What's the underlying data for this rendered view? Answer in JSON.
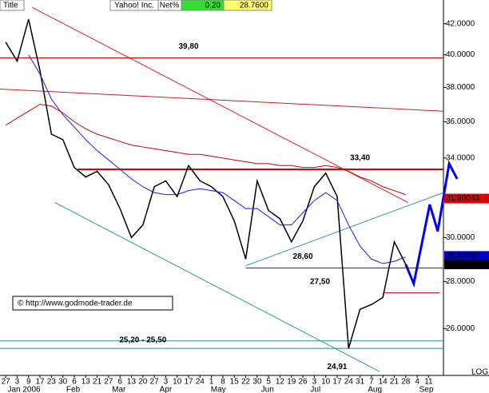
{
  "chart_data": {
    "type": "line",
    "header": {
      "title": "Title",
      "symbol": "Yahoo! Inc.",
      "net_label": "Net%",
      "net_value": "0.20",
      "last": "28.7600"
    },
    "watermark": "© http://www.godmode-trader.de",
    "scale_label": "LOG",
    "log_scale": true,
    "x": [
      0,
      1,
      2,
      3,
      4,
      5,
      6,
      7,
      8,
      9,
      10,
      11,
      12,
      13,
      14,
      15,
      16,
      17,
      18,
      19,
      20,
      21,
      22,
      23,
      24,
      25,
      26,
      27,
      28,
      29,
      30,
      31,
      32,
      33,
      34,
      35
    ],
    "series": [
      {
        "name": "Price",
        "color": "#000000",
        "values": [
          40.8,
          39.6,
          42.3,
          39.0,
          35.3,
          35.0,
          33.5,
          33.0,
          33.3,
          32.6,
          31.4,
          30.0,
          30.6,
          32.5,
          32.8,
          32.0,
          33.6,
          32.8,
          32.5,
          32.0,
          30.8,
          29.0,
          32.8,
          31.3,
          30.9,
          29.8,
          30.8,
          32.5,
          33.2,
          32.0,
          25.2,
          26.8,
          27.0,
          27.3,
          29.8,
          28.76
        ]
      },
      {
        "name": "MA blue",
        "color": "#1a1aff",
        "values": [
          null,
          null,
          40.0,
          38.8,
          37.3,
          36.4,
          35.7,
          35.0,
          34.4,
          33.9,
          33.4,
          32.9,
          32.5,
          32.2,
          32.1,
          32.1,
          32.3,
          32.4,
          32.3,
          32.2,
          31.8,
          31.4,
          31.4,
          31.0,
          30.6,
          30.6,
          31.2,
          31.8,
          32.2,
          31.8,
          30.6,
          29.6,
          29.0,
          28.8,
          28.9,
          29.1
        ]
      },
      {
        "name": "MA red",
        "color": "#cc0000",
        "values": [
          35.8,
          36.2,
          36.6,
          37.0,
          36.9,
          36.5,
          36.0,
          35.6,
          35.3,
          35.1,
          34.9,
          34.7,
          34.6,
          34.5,
          34.4,
          34.3,
          34.2,
          34.2,
          34.1,
          34.0,
          33.9,
          33.8,
          33.7,
          33.7,
          33.6,
          33.6,
          33.5,
          33.5,
          33.6,
          33.5,
          33.3,
          33.0,
          32.8,
          32.5,
          32.3,
          32.1
        ]
      }
    ],
    "forecast": {
      "color": "#0000ff",
      "x": [
        35,
        35.7,
        37.1,
        37.8,
        38.8,
        39.5
      ],
      "values": [
        28.76,
        27.9,
        31.6,
        30.3,
        33.7,
        32.9
      ]
    },
    "levels": [
      {
        "value": 39.8,
        "label": "39,80",
        "from": -0.5,
        "to": 38.3,
        "color": "#cc0000",
        "label_x": 16
      },
      {
        "value": 33.4,
        "label": "33,40",
        "from": 6.3,
        "to": 38.3,
        "color": "#dd0000",
        "label_x": 31
      },
      {
        "value": 28.6,
        "label": "28,60",
        "from": 21,
        "to": 38.3,
        "color": "#aa0000",
        "label_x": 26
      },
      {
        "value": 27.5,
        "label": "27,50",
        "from": 33,
        "to": 38,
        "color": "#cc0000",
        "label_x": 27.5
      }
    ],
    "band": {
      "values": [
        25.2,
        25.5
      ],
      "label": "25,20 - 25,50",
      "color": "#2a8a8a",
      "label_x": 12
    },
    "low": {
      "value": 24.91,
      "label": "24,91",
      "x": 29
    },
    "trendlines": [
      {
        "color": "#dd2222",
        "x": [
          2.3,
          35.2
        ],
        "values": [
          43.1,
          31.7
        ]
      },
      {
        "color": "#cc2222",
        "x": [
          -0.5,
          38.3
        ],
        "values": [
          37.9,
          36.6
        ]
      },
      {
        "color": "#2a9a9a",
        "x": [
          21,
          38.3
        ],
        "values": [
          28.7,
          32.2
        ]
      },
      {
        "color": "#2a9a9a",
        "x": [
          4.3,
          32.7
        ],
        "values": [
          31.7,
          24.3
        ]
      }
    ],
    "price_tags": [
      {
        "value": 31.90048,
        "label": "31.90048",
        "bg": "#dd0000",
        "fg": "#ffffff"
      },
      {
        "value": 29.14687,
        "label": "29.14687",
        "bg": "#0000cc",
        "fg": "#ffffff"
      },
      {
        "value": 28.76,
        "label": "28.7600",
        "bg": "#000000",
        "fg": "#ffffff"
      }
    ],
    "xlim": [
      -0.5,
      38.3
    ],
    "ylim": [
      24.15,
      43.6
    ],
    "yticks": [
      {
        "value": 42,
        "label": "42.0000"
      },
      {
        "value": 40,
        "label": "40.0000"
      },
      {
        "value": 38,
        "label": "38.0000"
      },
      {
        "value": 36,
        "label": "36.0000"
      },
      {
        "value": 34,
        "label": "34.0000"
      },
      {
        "value": 30,
        "label": "30.0000"
      },
      {
        "value": 28,
        "label": "28.0000"
      },
      {
        "value": 26,
        "label": "26.0000"
      }
    ],
    "xticks": [
      {
        "value": 0,
        "label": "27"
      },
      {
        "value": 1,
        "label": "3"
      },
      {
        "value": 2,
        "label": "9"
      },
      {
        "value": 3,
        "label": "17"
      },
      {
        "value": 4,
        "label": "23"
      },
      {
        "value": 5,
        "label": "30"
      },
      {
        "value": 6,
        "label": "6"
      },
      {
        "value": 7,
        "label": "13"
      },
      {
        "value": 8,
        "label": "21"
      },
      {
        "value": 9,
        "label": "27"
      },
      {
        "value": 10,
        "label": "6"
      },
      {
        "value": 11,
        "label": "13"
      },
      {
        "value": 12,
        "label": "20"
      },
      {
        "value": 13,
        "label": "27"
      },
      {
        "value": 14,
        "label": "3"
      },
      {
        "value": 15,
        "label": "10"
      },
      {
        "value": 16,
        "label": "17"
      },
      {
        "value": 17,
        "label": "24"
      },
      {
        "value": 18,
        "label": "1"
      },
      {
        "value": 19,
        "label": "8"
      },
      {
        "value": 20,
        "label": "15"
      },
      {
        "value": 21,
        "label": "22"
      },
      {
        "value": 22,
        "label": "30"
      },
      {
        "value": 23,
        "label": "5"
      },
      {
        "value": 24,
        "label": "12"
      },
      {
        "value": 25,
        "label": "19"
      },
      {
        "value": 26,
        "label": "26"
      },
      {
        "value": 27,
        "label": "3"
      },
      {
        "value": 28,
        "label": "10"
      },
      {
        "value": 29,
        "label": "17"
      },
      {
        "value": 30,
        "label": "24"
      },
      {
        "value": 31,
        "label": "31"
      },
      {
        "value": 32,
        "label": "7"
      },
      {
        "value": 33,
        "label": "14"
      },
      {
        "value": 34,
        "label": "21"
      },
      {
        "value": 35,
        "label": "28"
      },
      {
        "value": 36,
        "label": "4"
      },
      {
        "value": 37,
        "label": "11"
      }
    ],
    "months": [
      {
        "value": 1.6,
        "label": "Jan 2006"
      },
      {
        "value": 5.9,
        "label": "Feb"
      },
      {
        "value": 9.9,
        "label": "Mar"
      },
      {
        "value": 14,
        "label": "Apr"
      },
      {
        "value": 18.6,
        "label": "May"
      },
      {
        "value": 22.9,
        "label": "Jun"
      },
      {
        "value": 27.1,
        "label": "Jul"
      },
      {
        "value": 32.3,
        "label": "Aug"
      },
      {
        "value": 36.8,
        "label": "Sep"
      }
    ]
  }
}
